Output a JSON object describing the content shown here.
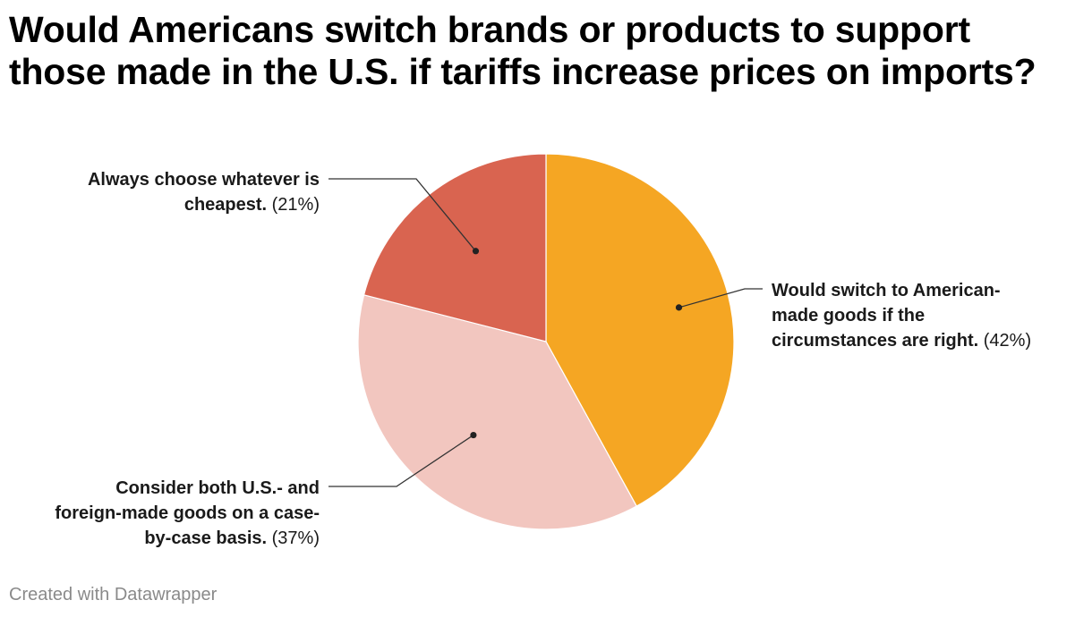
{
  "title": "Would Americans switch brands or products to support those made in the U.S. if tariffs increase prices on imports?",
  "footer": "Created with Datawrapper",
  "chart_data": {
    "type": "pie",
    "title": "Would Americans switch brands or products to support those made in the U.S. if tariffs increase prices on imports?",
    "unit": "%",
    "slices": [
      {
        "label": "Would switch to American-made goods if the circumstances are right.",
        "value": 42,
        "color": "#f5a623",
        "label_lines": [
          "Would switch to American-",
          "made goods if the",
          "circumstances are right."
        ],
        "pct_text": "(42%)",
        "label_side": "right"
      },
      {
        "label": "Consider both U.S.- and foreign-made goods on a case-by-case basis.",
        "value": 37,
        "color": "#f2c6bf",
        "label_lines": [
          "Consider both U.S.- and",
          "foreign-made goods on a case-",
          "by-case basis."
        ],
        "pct_text": "(37%)",
        "label_side": "left"
      },
      {
        "label": "Always choose whatever is cheapest.",
        "value": 21,
        "color": "#d96450",
        "label_lines": [
          "Always choose whatever is",
          "cheapest."
        ],
        "pct_text": "(21%)",
        "label_side": "left"
      }
    ]
  }
}
